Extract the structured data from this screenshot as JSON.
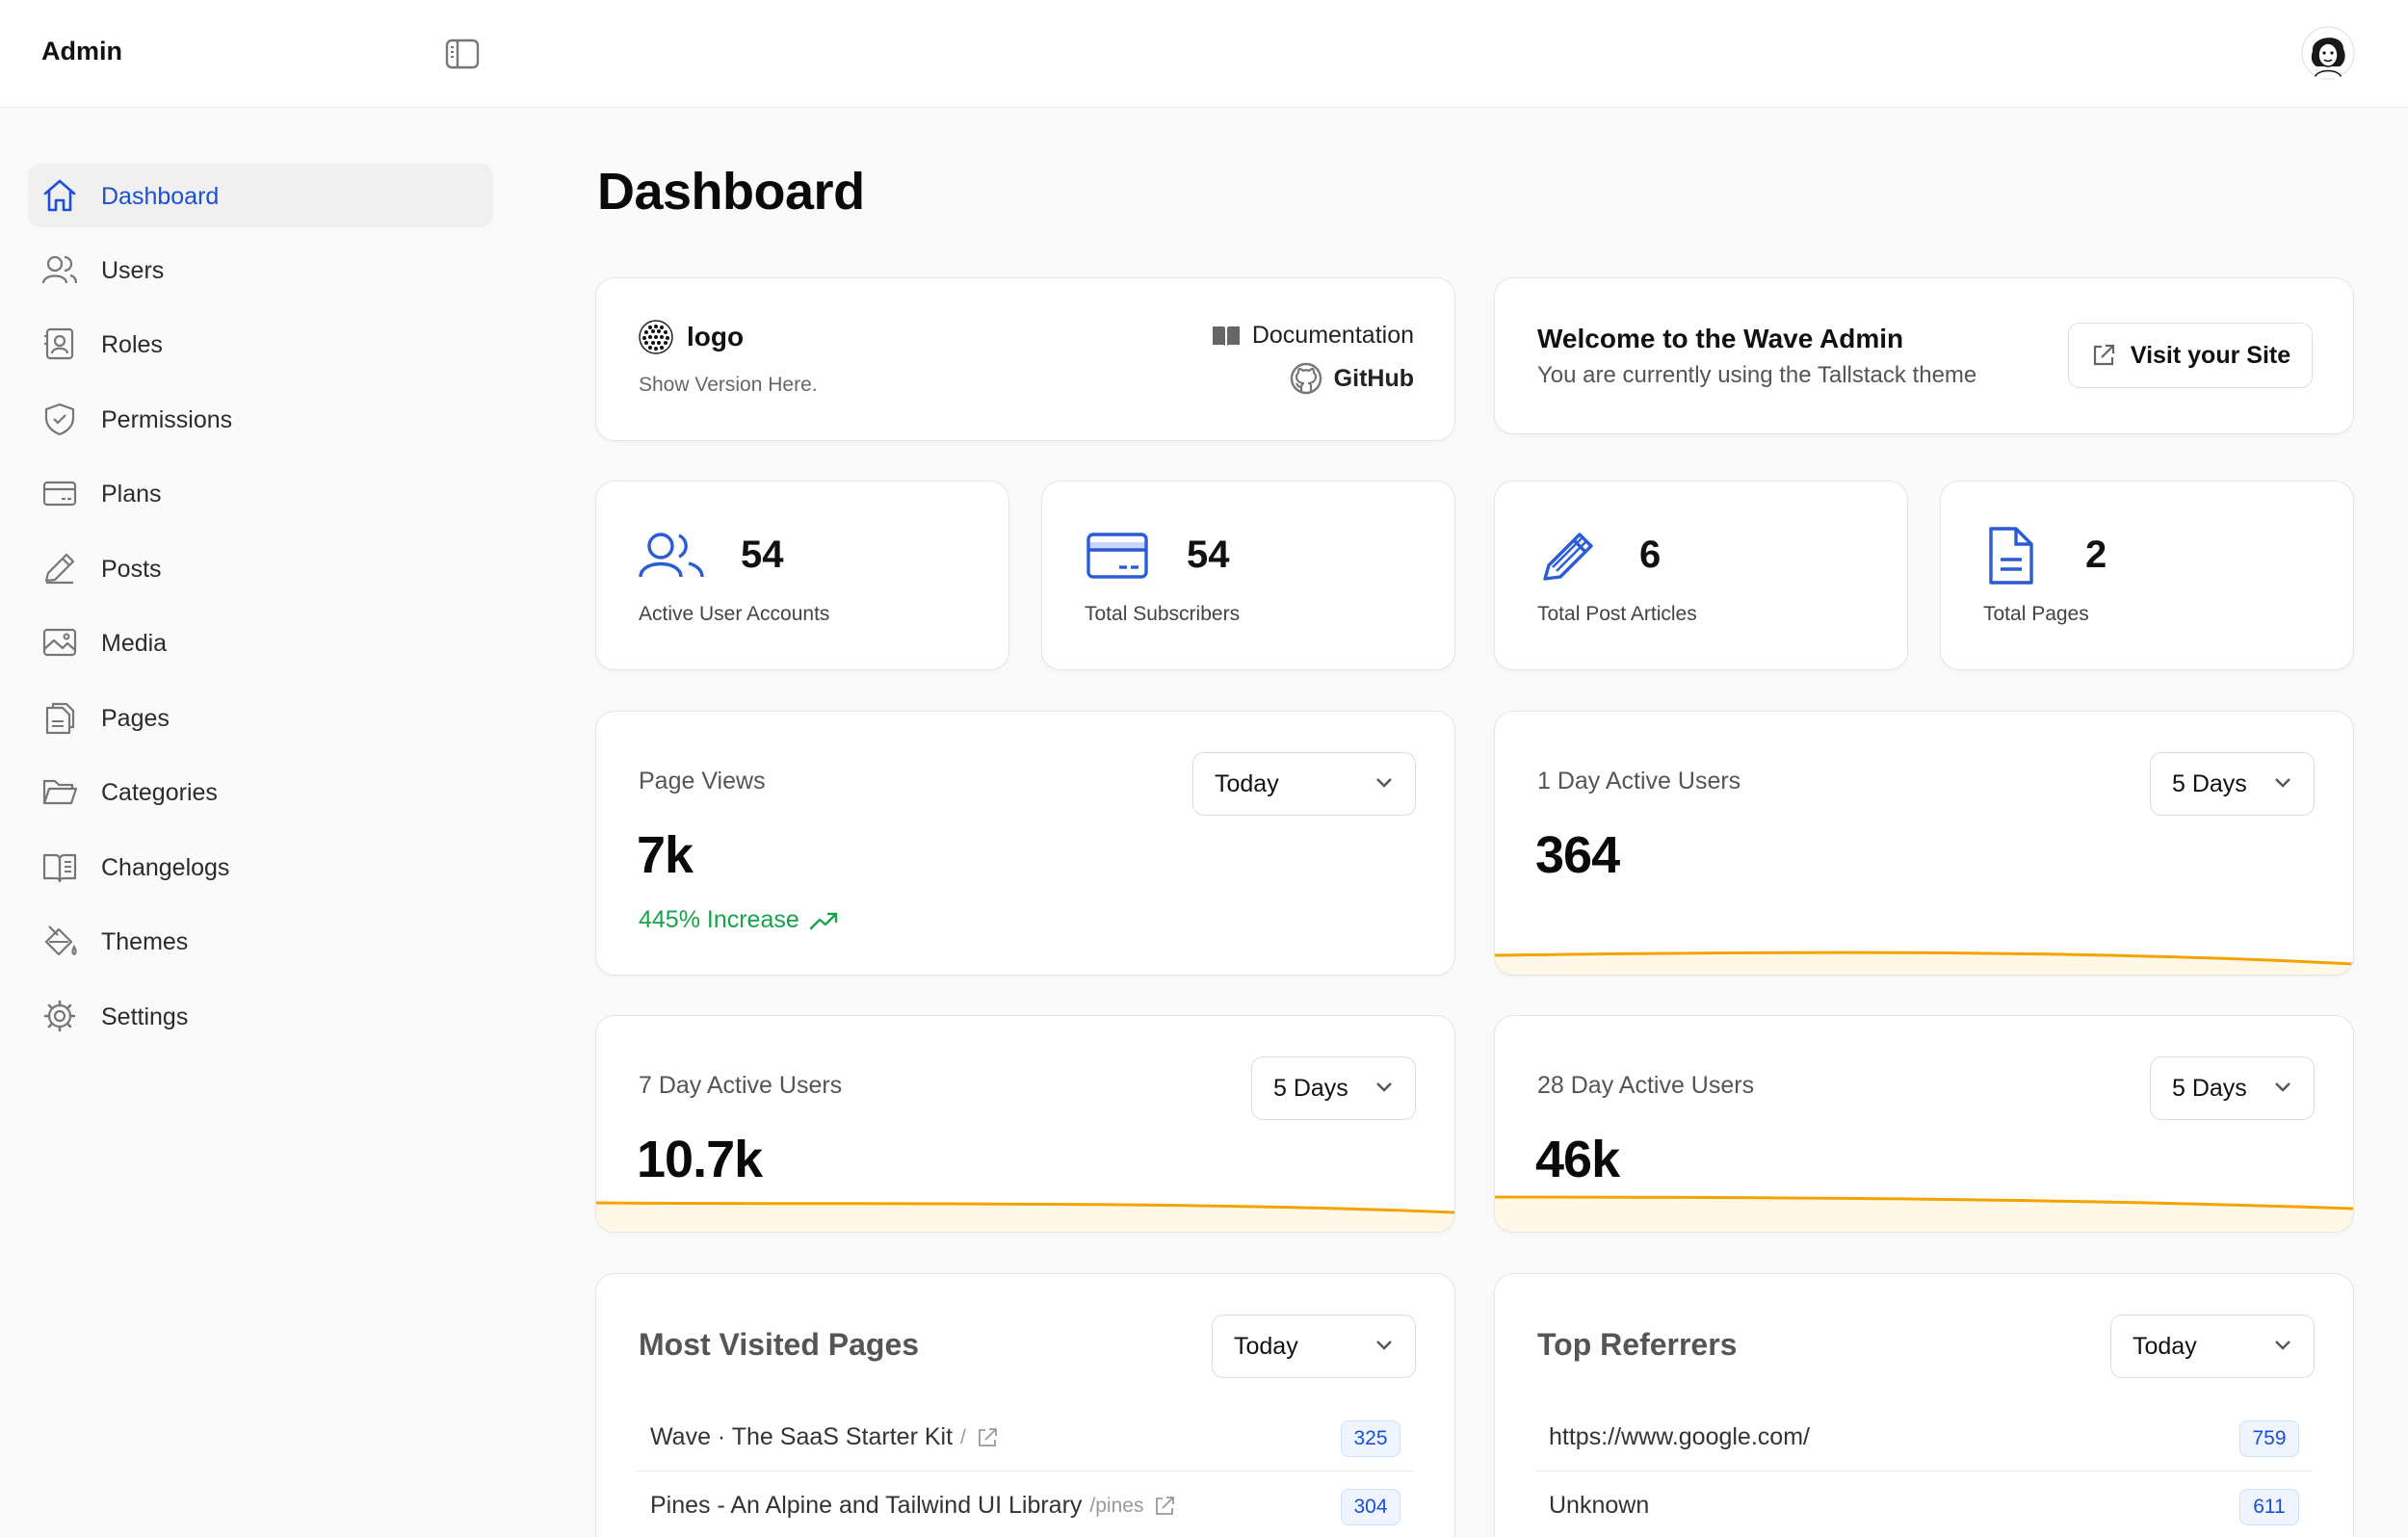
{
  "header": {
    "brand": "Admin"
  },
  "sidebar": {
    "items": [
      {
        "label": "Dashboard",
        "icon": "home-icon",
        "active": true
      },
      {
        "label": "Users",
        "icon": "users-icon"
      },
      {
        "label": "Roles",
        "icon": "id-card-icon"
      },
      {
        "label": "Permissions",
        "icon": "shield-icon"
      },
      {
        "label": "Plans",
        "icon": "credit-card-icon"
      },
      {
        "label": "Posts",
        "icon": "pencil-icon"
      },
      {
        "label": "Media",
        "icon": "image-icon"
      },
      {
        "label": "Pages",
        "icon": "documents-icon"
      },
      {
        "label": "Categories",
        "icon": "folder-icon"
      },
      {
        "label": "Changelogs",
        "icon": "book-icon"
      },
      {
        "label": "Themes",
        "icon": "paint-bucket-icon"
      },
      {
        "label": "Settings",
        "icon": "gear-icon"
      }
    ]
  },
  "page": {
    "title": "Dashboard"
  },
  "logo_card": {
    "logo": "logo",
    "version": "Show Version Here.",
    "docs": "Documentation",
    "github": "GitHub"
  },
  "welcome": {
    "title": "Welcome to the Wave Admin",
    "subtitle": "You are currently using the Tallstack theme",
    "button": "Visit your Site"
  },
  "stats": [
    {
      "value": "54",
      "label": "Active User Accounts",
      "icon": "users-icon"
    },
    {
      "value": "54",
      "label": "Total Subscribers",
      "icon": "credit-card-icon"
    },
    {
      "value": "6",
      "label": "Total Post Articles",
      "icon": "pencil-icon"
    },
    {
      "value": "2",
      "label": "Total Pages",
      "icon": "document-icon"
    }
  ],
  "metrics": {
    "page_views": {
      "label": "Page Views",
      "value": "7k",
      "change": "445% Increase",
      "range": "Today"
    },
    "day1": {
      "label": "1 Day Active Users",
      "value": "364",
      "range": "5 Days"
    },
    "day7": {
      "label": "7 Day Active Users",
      "value": "10.7k",
      "range": "5 Days"
    },
    "day28": {
      "label": "28 Day Active Users",
      "value": "46k",
      "range": "5 Days"
    }
  },
  "most_visited": {
    "title": "Most Visited Pages",
    "range": "Today",
    "rows": [
      {
        "title": "Wave · The SaaS Starter Kit",
        "path": "/",
        "count": "325"
      },
      {
        "title": "Pines - An Alpine and Tailwind UI Library",
        "path": "/pines",
        "count": "304"
      }
    ]
  },
  "top_referrers": {
    "title": "Top Referrers",
    "range": "Today",
    "rows": [
      {
        "title": "https://www.google.com/",
        "count": "759"
      },
      {
        "title": "Unknown",
        "count": "611"
      }
    ]
  },
  "colors": {
    "accent": "#1d4ed8",
    "sparkline": "#f5a300",
    "positive": "#16a34a"
  }
}
